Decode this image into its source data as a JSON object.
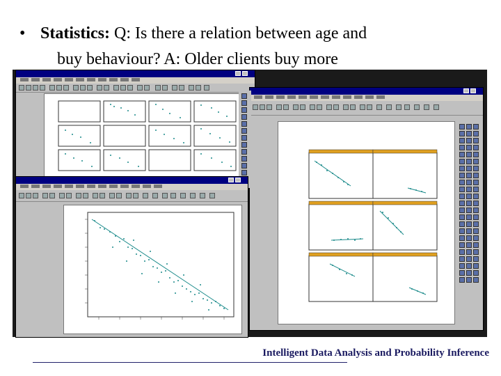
{
  "slide": {
    "bullet": "•",
    "stat_label": "Statistics:",
    "question_line1": "Q: Is there a relation  between age and",
    "question_line2": "buy behaviour?  A: Older clients buy more",
    "footer": "Intelligent Data Analysis and Probability Inference"
  },
  "screenshot": {
    "description_icons": [
      "splus-window-icon",
      "scatterplot-matrix",
      "scatter-regression-plot",
      "trellis-plot"
    ]
  }
}
